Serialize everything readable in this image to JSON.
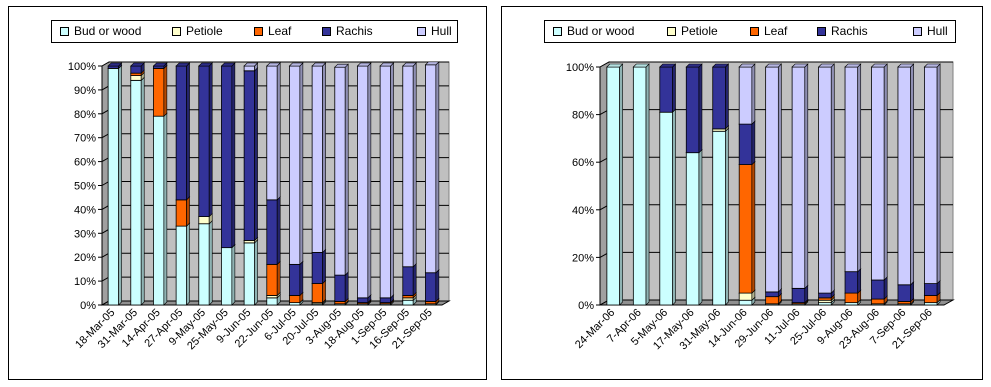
{
  "colors": {
    "bud": "#CCFFFF",
    "petiole": "#FFFFCC",
    "leaf": "#FF6600",
    "rachis": "#333399",
    "hull": "#CCCCFF",
    "plot_bg": "#C0C0C0",
    "border": "#000000"
  },
  "chart_data": [
    {
      "type": "bar",
      "stacked": true,
      "percent": true,
      "three_d": true,
      "legend_position": "top",
      "y_ticks": [
        "0%",
        "10%",
        "20%",
        "30%",
        "40%",
        "50%",
        "60%",
        "70%",
        "80%",
        "90%",
        "100%"
      ],
      "ylim": [
        0,
        100
      ],
      "categories": [
        "18-Mar-05",
        "31-Mar-05",
        "14-Apr-05",
        "27-Apr-05",
        "9-May-05",
        "25-May-05",
        "9-Jun-05",
        "22-Jun-05",
        "6-Jul-05",
        "20-Jul-05",
        "3-Aug-05",
        "18-Aug-05",
        "1-Sep-05",
        "16-Sep-05",
        "21-Sep-05"
      ],
      "series": [
        {
          "name": "Bud or wood",
          "values": [
            99,
            94,
            79,
            33,
            34,
            24,
            26,
            3,
            1,
            0.5,
            0.5,
            0.5,
            0.5,
            2,
            0.5
          ]
        },
        {
          "name": "Petiole",
          "values": [
            0,
            2,
            0,
            0,
            3,
            0,
            1,
            1,
            0,
            0.5,
            0,
            0,
            0,
            1,
            0
          ]
        },
        {
          "name": "Leaf",
          "values": [
            0,
            1,
            20,
            11,
            0,
            0,
            0,
            13,
            3,
            8,
            1,
            0.5,
            0.5,
            1,
            1
          ]
        },
        {
          "name": "Rachis",
          "values": [
            1,
            3,
            1,
            56,
            63,
            76,
            71,
            27,
            13,
            13,
            11,
            2,
            2,
            12,
            12
          ]
        },
        {
          "name": "Hull",
          "values": [
            0,
            0,
            0,
            0,
            0,
            0,
            2,
            56,
            83,
            78,
            87,
            97,
            97,
            84,
            87
          ]
        }
      ]
    },
    {
      "type": "bar",
      "stacked": true,
      "percent": true,
      "three_d": true,
      "legend_position": "top",
      "y_ticks": [
        "0%",
        "20%",
        "40%",
        "60%",
        "80%",
        "100%"
      ],
      "ylim": [
        0,
        100
      ],
      "categories": [
        "24-Mar-06",
        "7-Apr-06",
        "5-May-06",
        "17-May-06",
        "31-May-06",
        "14-Jun-06",
        "29-Jun-06",
        "11-Jul-06",
        "25-Jul-06",
        "9-Aug-06",
        "23-Aug-06",
        "7-Sep-06",
        "21-Sep-06"
      ],
      "series": [
        {
          "name": "Bud or wood",
          "values": [
            100,
            100,
            81,
            64,
            73,
            2,
            0.5,
            0.5,
            1,
            1,
            0.5,
            0.5,
            1
          ]
        },
        {
          "name": "Petiole",
          "values": [
            0,
            0,
            0,
            0,
            1,
            3,
            0,
            0,
            1,
            0,
            0,
            0,
            0
          ]
        },
        {
          "name": "Leaf",
          "values": [
            0,
            0,
            0,
            0,
            0,
            54,
            3,
            0.5,
            1,
            4,
            2,
            1,
            3
          ]
        },
        {
          "name": "Rachis",
          "values": [
            0,
            0,
            19,
            36,
            26,
            17,
            2,
            6,
            2,
            9,
            8,
            7,
            5
          ]
        },
        {
          "name": "Hull",
          "values": [
            0,
            0,
            0,
            0,
            0,
            24,
            94.5,
            93,
            95,
            86,
            89.5,
            91.5,
            91
          ]
        }
      ]
    }
  ]
}
